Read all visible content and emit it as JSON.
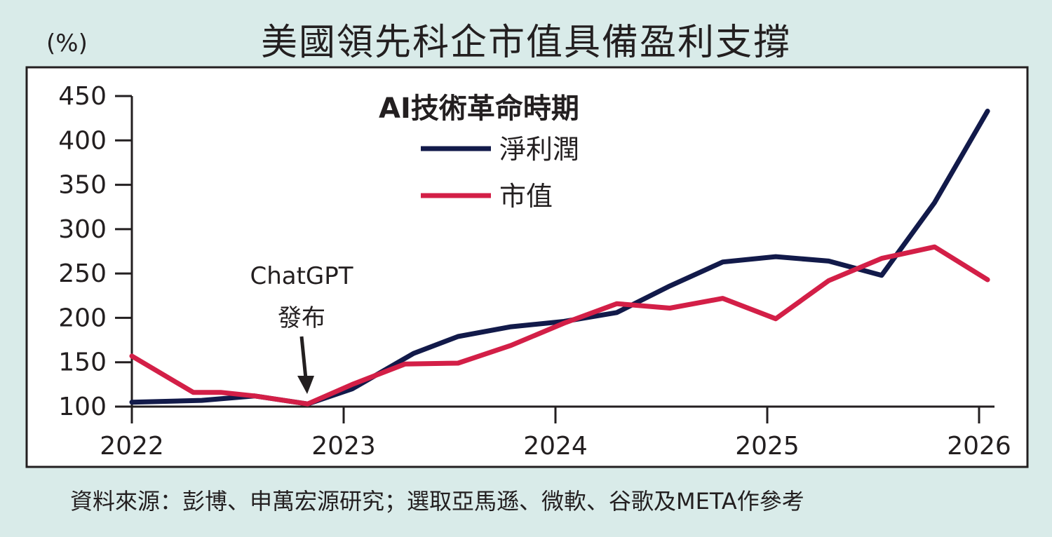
{
  "title": "美國領先科企市值具備盈利支撐",
  "unit": "(%)",
  "source": "資料來源：彭博、申萬宏源研究；選取亞馬遜、微軟、谷歌及META作參考",
  "colors": {
    "profit": "#121a4a",
    "market_cap": "#d31f47",
    "panel": "#ffffff",
    "background": "#d9ebe9",
    "text": "#231f20"
  },
  "chart_data": {
    "type": "line",
    "title": "美國領先科企市值具備盈利支撐",
    "legend_title": "AI技術革命時期",
    "legend_position": "top-center",
    "ylabel": "(%)",
    "ylim": [
      100,
      450
    ],
    "yticks": [
      100,
      150,
      200,
      250,
      300,
      350,
      400,
      450
    ],
    "xlim": [
      2022,
      2026
    ],
    "xticks": [
      2022,
      2023,
      2024,
      2025,
      2026
    ],
    "grid": false,
    "series": [
      {
        "name": "淨利潤",
        "color": "#121a4a",
        "x": [
          2022.0,
          2022.33,
          2022.58,
          2022.83,
          2023.04,
          2023.33,
          2023.54,
          2023.79,
          2024.04,
          2024.29,
          2024.54,
          2024.79,
          2025.04,
          2025.29,
          2025.54,
          2025.79,
          2026.04
        ],
        "y": [
          105,
          107,
          112,
          103,
          120,
          160,
          179,
          190,
          196,
          206,
          236,
          263,
          269,
          264,
          248,
          330,
          433
        ]
      },
      {
        "name": "市值",
        "color": "#d31f47",
        "x": [
          2022.0,
          2022.29,
          2022.42,
          2022.58,
          2022.83,
          2023.04,
          2023.29,
          2023.54,
          2023.79,
          2024.04,
          2024.29,
          2024.54,
          2024.79,
          2025.04,
          2025.29,
          2025.54,
          2025.79,
          2026.04
        ],
        "y": [
          157,
          116,
          116,
          112,
          103,
          125,
          148,
          149,
          169,
          194,
          216,
          211,
          222,
          199,
          242,
          267,
          280,
          243
        ]
      }
    ],
    "annotations": [
      {
        "line1": "ChatGPT",
        "line2": "發布",
        "x": 2022.83,
        "y": 103
      }
    ]
  }
}
